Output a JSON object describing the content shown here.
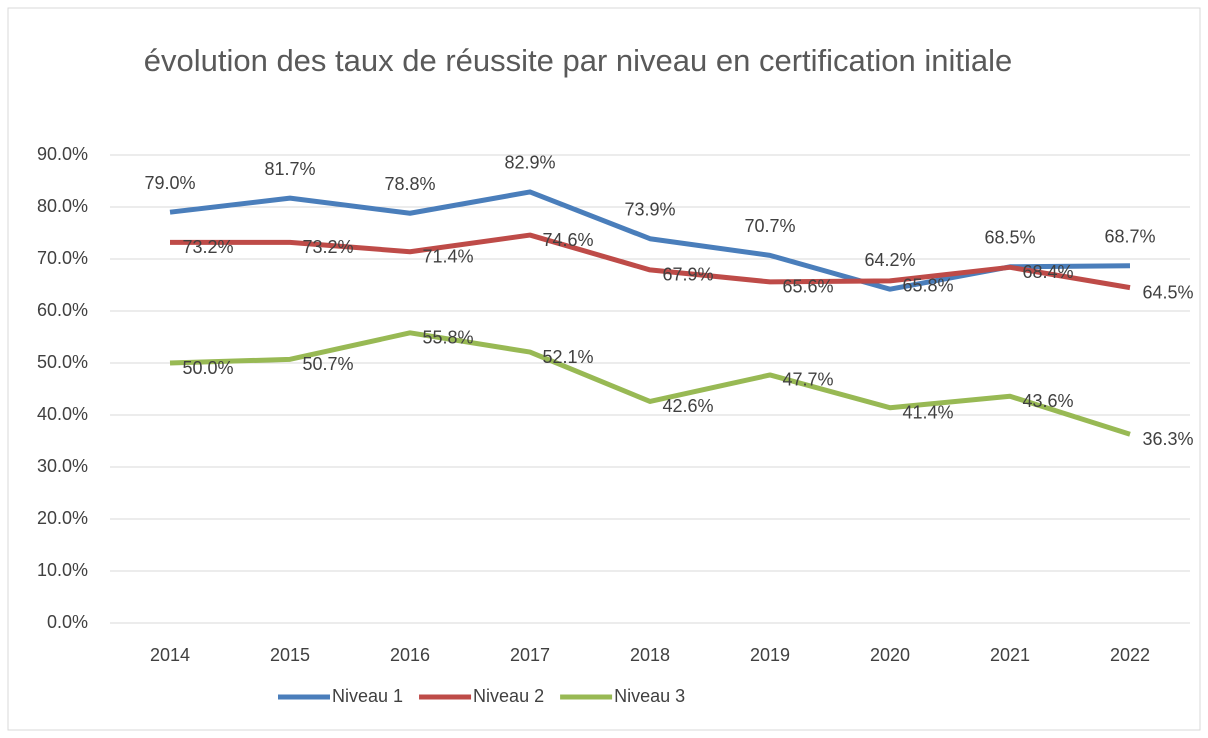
{
  "chart_data": {
    "type": "line",
    "title": "évolution des taux de réussite par niveau en certification initiale",
    "categories": [
      "2014",
      "2015",
      "2016",
      "2017",
      "2018",
      "2019",
      "2020",
      "2021",
      "2022"
    ],
    "series": [
      {
        "name": "Niveau 1",
        "color": "#4a7ebb",
        "values": [
          79.0,
          81.7,
          78.8,
          82.9,
          73.9,
          70.7,
          64.2,
          68.5,
          68.7
        ],
        "value_labels": [
          "79.0%",
          "81.7%",
          "78.8%",
          "82.9%",
          "73.9%",
          "70.7%",
          "64.2%",
          "68.5%",
          "68.7%"
        ]
      },
      {
        "name": "Niveau 2",
        "color": "#be4b48",
        "values": [
          73.2,
          73.2,
          71.4,
          74.6,
          67.9,
          65.6,
          65.8,
          68.4,
          64.5
        ],
        "value_labels": [
          "73.2%",
          "73.2%",
          "71.4%",
          "74.6%",
          "67.9%",
          "65.6%",
          "65.8%",
          "68.4%",
          "64.5%"
        ]
      },
      {
        "name": "Niveau 3",
        "color": "#98b954",
        "values": [
          50.0,
          50.7,
          55.8,
          52.1,
          42.6,
          47.7,
          41.4,
          43.6,
          36.3
        ],
        "value_labels": [
          "50.0%",
          "50.7%",
          "55.8%",
          "52.1%",
          "42.6%",
          "47.7%",
          "41.4%",
          "43.6%",
          "36.3%"
        ]
      }
    ],
    "ylim": [
      0,
      90
    ],
    "yticks": [
      {
        "value": 0,
        "label": "0.0%"
      },
      {
        "value": 10,
        "label": "10.0%"
      },
      {
        "value": 20,
        "label": "20.0%"
      },
      {
        "value": 30,
        "label": "30.0%"
      },
      {
        "value": 40,
        "label": "40.0%"
      },
      {
        "value": 50,
        "label": "50.0%"
      },
      {
        "value": 60,
        "label": "60.0%"
      },
      {
        "value": 70,
        "label": "70.0%"
      },
      {
        "value": 80,
        "label": "80.0%"
      },
      {
        "value": 90,
        "label": "90.0%"
      }
    ],
    "grid": true,
    "legend": "bottom"
  }
}
